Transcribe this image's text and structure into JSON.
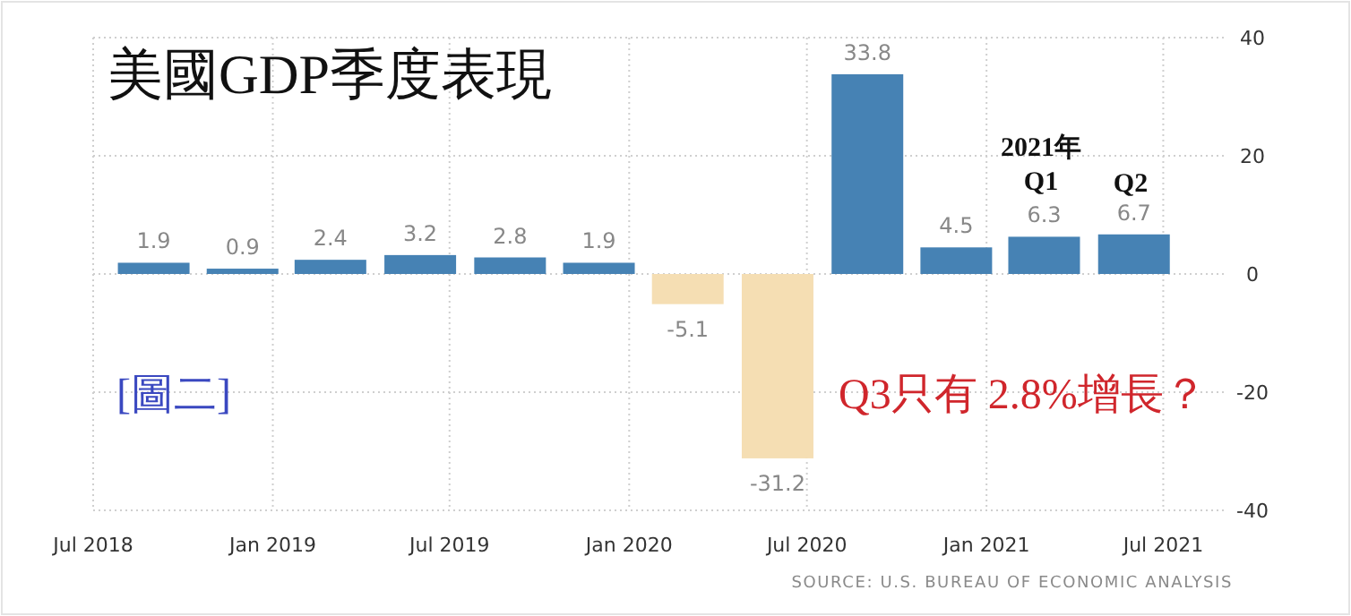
{
  "chart_data": {
    "type": "bar",
    "title": "美國GDP季度表現",
    "x": [
      "2018-09-01",
      "2018-12-01",
      "2019-03-01",
      "2019-06-01",
      "2019-09-01",
      "2019-12-01",
      "2020-03-01",
      "2020-06-01",
      "2020-09-01",
      "2020-12-01",
      "2021-03-01",
      "2021-06-01"
    ],
    "values": [
      1.9,
      0.9,
      2.4,
      3.2,
      2.8,
      1.9,
      -5.1,
      -31.2,
      33.8,
      4.5,
      6.3,
      6.7
    ],
    "colors": [
      "#4682b4",
      "#4682b4",
      "#4682b4",
      "#4682b4",
      "#4682b4",
      "#4682b4",
      "#f5deb3",
      "#f5deb3",
      "#4682b4",
      "#4682b4",
      "#4682b4",
      "#4682b4"
    ],
    "data_labels": true,
    "xlim": [
      "2018-07-01",
      "2021-09-01"
    ],
    "xticks": [
      {
        "value": "2018-07-01",
        "label": "Jul 2018"
      },
      {
        "value": "2019-01-01",
        "label": "Jan 2019"
      },
      {
        "value": "2019-07-01",
        "label": "Jul 2019"
      },
      {
        "value": "2020-01-01",
        "label": "Jan 2020"
      },
      {
        "value": "2020-07-01",
        "label": "Jul 2020"
      },
      {
        "value": "2021-01-01",
        "label": "Jan 2021"
      },
      {
        "value": "2021-07-01",
        "label": "Jul 2021"
      }
    ],
    "ylim": [
      -40,
      40
    ],
    "yticks": [
      -40,
      -20,
      0,
      20,
      40
    ],
    "grid": true,
    "annotations": [
      {
        "text": "[圖二]"
      },
      {
        "text": "Q3只有 2.8%增長？"
      },
      {
        "text": "SOURCE: U.S. BUREAU OF ECONOMIC ANALYSIS"
      },
      "2021年\nQ1",
      "Q2"
    ]
  }
}
